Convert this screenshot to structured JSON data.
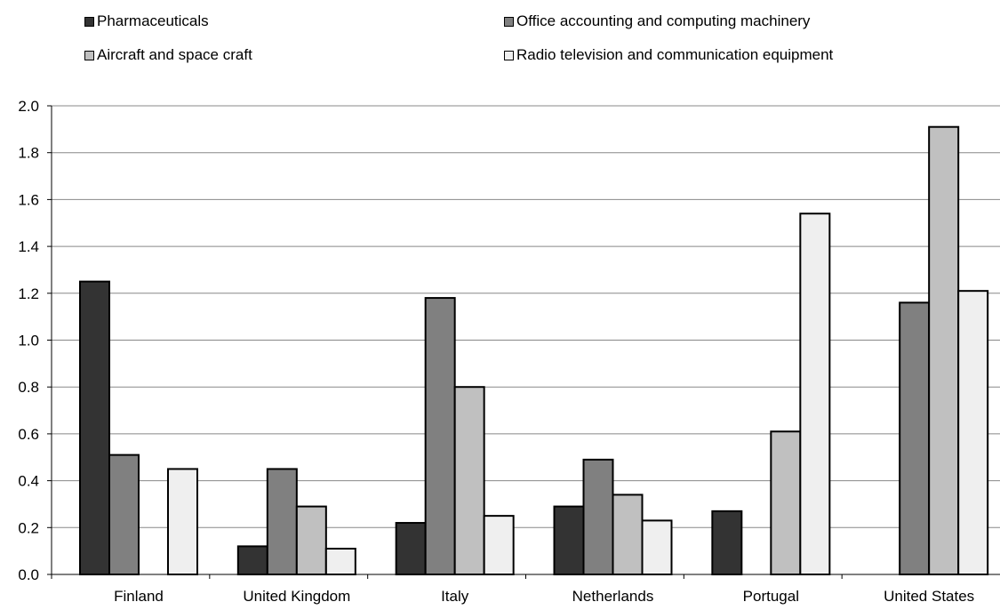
{
  "chart_data": {
    "type": "bar",
    "categories": [
      "Finland",
      "United Kingdom",
      "Italy",
      "Netherlands",
      "Portugal",
      "United States"
    ],
    "series": [
      {
        "name": "Pharmaceuticals",
        "color": "#333333",
        "values": [
          1.25,
          0.12,
          0.22,
          0.29,
          0.27,
          0.0
        ]
      },
      {
        "name": "Office accounting and computing machinery",
        "color": "#808080",
        "values": [
          0.51,
          0.45,
          1.18,
          0.49,
          0.0,
          1.16
        ]
      },
      {
        "name": "Aircraft and space craft",
        "color": "#c0c0c0",
        "values": [
          0.0,
          0.29,
          0.8,
          0.34,
          0.61,
          1.91
        ]
      },
      {
        "name": "Radio television and communication equipment",
        "color": "#efefef",
        "values": [
          0.45,
          0.11,
          0.25,
          0.23,
          1.54,
          1.21
        ]
      }
    ],
    "ylim": [
      0,
      2.0
    ],
    "yticks": [
      "0.0",
      "0.2",
      "0.4",
      "0.6",
      "0.8",
      "1.0",
      "1.2",
      "1.4",
      "1.6",
      "1.8",
      "2.0"
    ],
    "grid": true,
    "legend_position": "top"
  }
}
